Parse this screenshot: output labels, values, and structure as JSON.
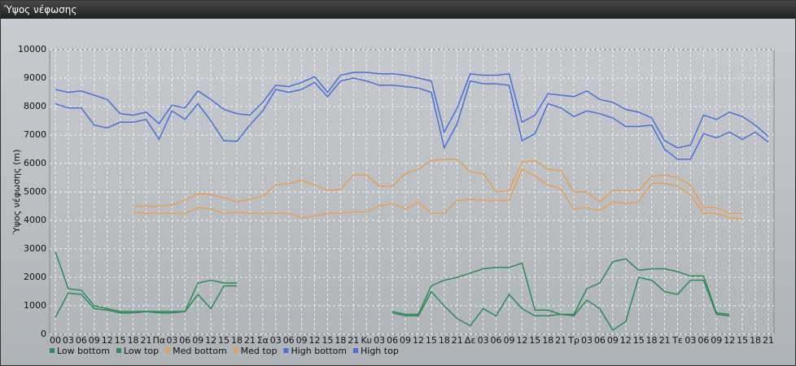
{
  "window_title": "Ύψος νέφωσης",
  "chart_data": {
    "type": "line",
    "ylabel": "Ύψος νέφωσης (m)",
    "categories": [
      "00",
      "03",
      "06",
      "09",
      "12",
      "15",
      "18",
      "21",
      "Πα",
      "03",
      "06",
      "09",
      "12",
      "15",
      "18",
      "21",
      "Σα",
      "03",
      "06",
      "09",
      "12",
      "15",
      "18",
      "21",
      "Κυ",
      "03",
      "06",
      "09",
      "12",
      "15",
      "18",
      "21",
      "Δε",
      "03",
      "06",
      "09",
      "12",
      "15",
      "18",
      "21",
      "Τρ",
      "03",
      "06",
      "09",
      "12",
      "15",
      "18",
      "21",
      "Τε",
      "03",
      "06",
      "09",
      "12",
      "15",
      "18",
      "21"
    ],
    "ylim": [
      0,
      10000
    ],
    "yticks": [
      0,
      1000,
      2000,
      3000,
      4000,
      5000,
      6000,
      7000,
      8000,
      9000,
      10000
    ],
    "grid": true,
    "legend": "bottom",
    "series": [
      {
        "name": "Low bottom",
        "color": "#2e8a5a",
        "values": [
          600,
          1450,
          1400,
          900,
          850,
          750,
          750,
          800,
          750,
          750,
          800,
          1400,
          900,
          1700,
          1700,
          null,
          null,
          null,
          null,
          null,
          null,
          null,
          null,
          null,
          null,
          null,
          750,
          650,
          650,
          1500,
          1000,
          550,
          300,
          900,
          650,
          1400,
          900,
          650,
          650,
          700,
          650,
          1200,
          900,
          150,
          450,
          2000,
          1900,
          1500,
          1400,
          1900,
          1900,
          700,
          650,
          null,
          null,
          null
        ]
      },
      {
        "name": "Low top",
        "color": "#2e8a5a",
        "values": [
          2900,
          1600,
          1550,
          1000,
          900,
          800,
          800,
          800,
          800,
          800,
          800,
          1800,
          1900,
          1800,
          1800,
          null,
          null,
          null,
          null,
          null,
          null,
          null,
          null,
          null,
          null,
          null,
          800,
          700,
          700,
          1700,
          1900,
          2000,
          2150,
          2300,
          2350,
          2350,
          2500,
          850,
          850,
          700,
          700,
          1600,
          1800,
          2550,
          2650,
          2250,
          2300,
          2300,
          2200,
          2050,
          2050,
          750,
          700,
          null,
          null,
          null
        ]
      },
      {
        "name": "Med bottom",
        "color": "#e8a050",
        "values": [
          null,
          null,
          null,
          null,
          null,
          null,
          4300,
          4250,
          4250,
          4250,
          4250,
          4450,
          4400,
          4250,
          4300,
          4250,
          4250,
          4250,
          4250,
          4100,
          4150,
          4250,
          4250,
          4300,
          4300,
          4500,
          4600,
          4400,
          4650,
          4250,
          4250,
          4700,
          4750,
          4700,
          4700,
          4700,
          5800,
          5550,
          5250,
          5100,
          4400,
          4450,
          4350,
          4650,
          4600,
          4650,
          5300,
          5300,
          5200,
          4900,
          4250,
          4250,
          4100,
          4050,
          null,
          null
        ]
      },
      {
        "name": "Med top",
        "color": "#e8a050",
        "values": [
          null,
          null,
          null,
          null,
          null,
          null,
          4500,
          4500,
          4500,
          4550,
          4700,
          4950,
          4900,
          4800,
          4650,
          4750,
          4850,
          5250,
          5300,
          5400,
          5250,
          5050,
          5100,
          5600,
          5600,
          5200,
          5200,
          5650,
          5800,
          6100,
          6150,
          6150,
          5700,
          5650,
          5000,
          5050,
          6050,
          6100,
          5800,
          5750,
          5000,
          5000,
          4650,
          5050,
          5050,
          5050,
          5550,
          5600,
          5500,
          5250,
          4450,
          4450,
          4250,
          4250,
          null,
          null
        ]
      },
      {
        "name": "High bottom",
        "color": "#4a6fd8",
        "values": [
          8100,
          7950,
          7950,
          7350,
          7250,
          7450,
          7450,
          7550,
          6850,
          7850,
          7550,
          8100,
          7500,
          6800,
          6780,
          7350,
          7850,
          8600,
          8500,
          8600,
          8850,
          8350,
          8900,
          9000,
          8900,
          8750,
          8750,
          8700,
          8650,
          8500,
          6550,
          7400,
          8900,
          8800,
          8800,
          8750,
          6800,
          7050,
          8100,
          7950,
          7650,
          7850,
          7750,
          7600,
          7300,
          7300,
          7350,
          6500,
          6150,
          6150,
          7050,
          6900,
          7100,
          6850,
          7100,
          6750
        ]
      },
      {
        "name": "High top",
        "color": "#4a6fd8",
        "values": [
          8600,
          8500,
          8550,
          8400,
          8250,
          7750,
          7700,
          7800,
          7400,
          8050,
          7950,
          8550,
          8250,
          7900,
          7750,
          7700,
          8150,
          8750,
          8700,
          8850,
          9050,
          8500,
          9100,
          9200,
          9200,
          9150,
          9150,
          9100,
          9000,
          8900,
          7100,
          7950,
          9150,
          9100,
          9100,
          9150,
          7450,
          7700,
          8450,
          8400,
          8350,
          8550,
          8250,
          8150,
          7900,
          7800,
          7600,
          6800,
          6550,
          6650,
          7700,
          7550,
          7800,
          7650,
          7350,
          6950
        ]
      }
    ]
  }
}
